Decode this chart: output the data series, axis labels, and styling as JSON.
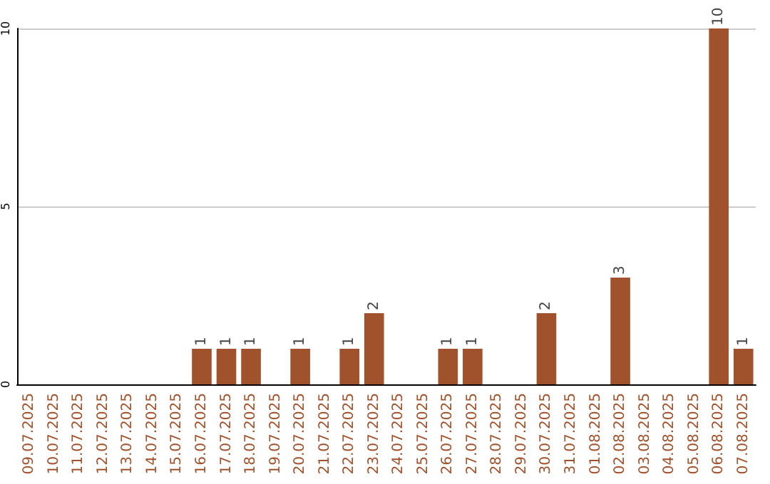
{
  "chart_data": {
    "type": "bar",
    "categories": [
      "09.07.2025",
      "10.07.2025",
      "11.07.2025",
      "12.07.2025",
      "13.07.2025",
      "14.07.2025",
      "15.07.2025",
      "16.07.2025",
      "17.07.2025",
      "18.07.2025",
      "19.07.2025",
      "20.07.2025",
      "21.07.2025",
      "22.07.2025",
      "23.07.2025",
      "24.07.2025",
      "25.07.2025",
      "26.07.2025",
      "27.07.2025",
      "28.07.2025",
      "29.07.2025",
      "30.07.2025",
      "31.07.2025",
      "01.08.2025",
      "02.08.2025",
      "03.08.2025",
      "04.08.2025",
      "05.08.2025",
      "06.08.2025",
      "07.08.2025"
    ],
    "values": [
      0,
      0,
      0,
      0,
      0,
      0,
      0,
      1,
      1,
      1,
      0,
      1,
      0,
      1,
      2,
      0,
      0,
      1,
      1,
      0,
      0,
      2,
      0,
      0,
      3,
      0,
      0,
      0,
      10,
      1
    ],
    "value_labels": [
      null,
      null,
      null,
      null,
      null,
      null,
      null,
      "1",
      "1",
      "1",
      null,
      "1",
      null,
      "1",
      "2",
      null,
      null,
      "1",
      "1",
      null,
      null,
      "2",
      null,
      null,
      "3",
      null,
      null,
      null,
      "10",
      "1"
    ],
    "color": "#a0522d",
    "ylim": [
      0,
      10
    ],
    "yticks": [
      0,
      5,
      10
    ],
    "grid": "y"
  }
}
